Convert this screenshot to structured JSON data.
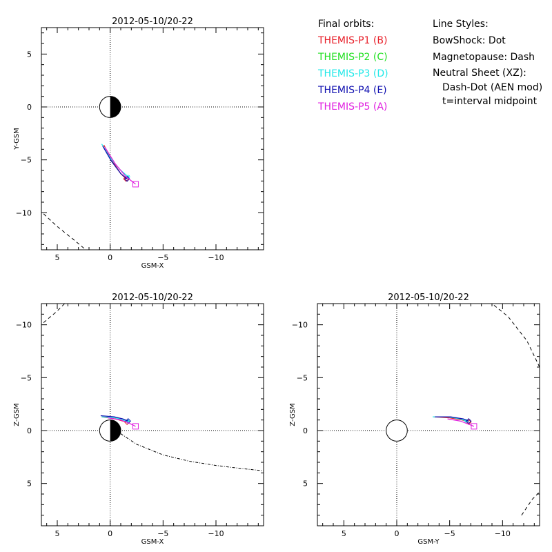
{
  "legend": {
    "orbits_title": "Final orbits:",
    "probes": [
      {
        "label": "THEMIS-P1 (B)",
        "color": "#e8202a"
      },
      {
        "label": "THEMIS-P2 (C)",
        "color": "#22e022"
      },
      {
        "label": "THEMIS-P3 (D)",
        "color": "#22e8e8"
      },
      {
        "label": "THEMIS-P4 (E)",
        "color": "#1010b0"
      },
      {
        "label": "THEMIS-P5 (A)",
        "color": "#e020e0"
      }
    ],
    "styles_title": "Line Styles:",
    "styles": [
      "BowShock: Dot",
      "Magnetopause: Dash",
      "Neutral Sheet (XZ):"
    ],
    "styles_sub": [
      "Dash-Dot (AEN mod)",
      "t=interval midpoint"
    ]
  },
  "chart_data": [
    {
      "type": "line",
      "panel": "XY",
      "title": "2012-05-10/20-22",
      "xlabel": "GSM-X",
      "ylabel": "Y-GSM",
      "xlim": [
        6.5,
        -14.5
      ],
      "ylim": [
        7.5,
        -13.5
      ],
      "x_ticks": [
        5,
        0,
        -5,
        -10
      ],
      "y_ticks": [
        5,
        0,
        -5,
        -10
      ],
      "earth_markers": true,
      "boundary_dashed": [
        [
          6.3,
          -10.1
        ],
        [
          5,
          -11.3
        ],
        [
          3.5,
          -12.5
        ],
        [
          2.3,
          -13.5
        ]
      ],
      "series": [
        {
          "name": "THEMIS-P1 (B)",
          "color": "#e8202a",
          "points": [
            [
              0.6,
              -3.6
            ],
            [
              -0.2,
              -5.1
            ],
            [
              -1.0,
              -6.3
            ],
            [
              -1.5,
              -6.8
            ]
          ],
          "end_marker": "diamond"
        },
        {
          "name": "THEMIS-P3 (D)",
          "color": "#22e8e8",
          "points": [
            [
              0.8,
              -3.5
            ],
            [
              0.0,
              -4.8
            ],
            [
              -0.9,
              -5.9
            ],
            [
              -1.7,
              -6.6
            ]
          ],
          "end_marker": "star"
        },
        {
          "name": "THEMIS-P4 (E)",
          "color": "#1010b0",
          "points": [
            [
              0.7,
              -3.7
            ],
            [
              -0.1,
              -5.1
            ],
            [
              -1.0,
              -6.3
            ],
            [
              -1.6,
              -6.8
            ]
          ],
          "end_marker": "diamond"
        },
        {
          "name": "THEMIS-P5 (A)",
          "color": "#e020e0",
          "points": [
            [
              0.5,
              -3.8
            ],
            [
              -0.5,
              -5.4
            ],
            [
              -1.5,
              -6.6
            ],
            [
              -2.4,
              -7.3
            ]
          ],
          "end_marker": "square"
        }
      ]
    },
    {
      "type": "line",
      "panel": "XZ",
      "title": "2012-05-10/20-22",
      "xlabel": "GSM-X",
      "ylabel": "Z-GSM",
      "xlim": [
        6.5,
        -14.5
      ],
      "ylim": [
        -12,
        9
      ],
      "x_ticks": [
        5,
        0,
        -5,
        -10
      ],
      "y_ticks": [
        5,
        0,
        -5,
        -10
      ],
      "earth_markers": true,
      "boundary_dashed": [
        [
          6.3,
          -10.2
        ],
        [
          5,
          -11.3
        ],
        [
          4.3,
          -12
        ]
      ],
      "neutral_sheet": [
        [
          -1.0,
          0.3
        ],
        [
          -2.5,
          1.3
        ],
        [
          -5,
          2.3
        ],
        [
          -7.5,
          2.9
        ],
        [
          -10,
          3.3
        ],
        [
          -12.5,
          3.6
        ],
        [
          -14.5,
          3.8
        ]
      ],
      "series": [
        {
          "name": "THEMIS-P1 (B)",
          "color": "#e8202a",
          "points": [
            [
              0.8,
              -1.3
            ],
            [
              -0.5,
              -1.1
            ],
            [
              -1.2,
              -0.9
            ],
            [
              -1.6,
              -0.8
            ]
          ],
          "end_marker": "diamond"
        },
        {
          "name": "THEMIS-P3 (D)",
          "color": "#22e8e8",
          "points": [
            [
              0.8,
              -1.3
            ],
            [
              -0.5,
              -1.2
            ],
            [
              -1.2,
              -1.0
            ],
            [
              -1.7,
              -0.9
            ]
          ],
          "end_marker": "star"
        },
        {
          "name": "THEMIS-P4 (E)",
          "color": "#1010b0",
          "points": [
            [
              0.9,
              -1.4
            ],
            [
              -0.4,
              -1.3
            ],
            [
              -1.2,
              -1.1
            ],
            [
              -1.7,
              -0.9
            ]
          ],
          "end_marker": "diamond"
        },
        {
          "name": "THEMIS-P5 (A)",
          "color": "#e020e0",
          "points": [
            [
              0.2,
              -1.2
            ],
            [
              -1.0,
              -1.0
            ],
            [
              -1.8,
              -0.7
            ],
            [
              -2.4,
              -0.4
            ]
          ],
          "end_marker": "square"
        }
      ]
    },
    {
      "type": "line",
      "panel": "YZ",
      "title": "2012-05-10/20-22",
      "xlabel": "GSM-Y",
      "ylabel": "Z-GSM",
      "xlim": [
        7.5,
        -13.5
      ],
      "ylim": [
        -12,
        9
      ],
      "x_ticks": [
        5,
        0,
        -5,
        -10
      ],
      "y_ticks": [
        5,
        0,
        -5,
        -10
      ],
      "earth_markers": false,
      "boundary_dashed_arcs": [
        [
          [
            -11.8,
            8.0
          ],
          [
            -12.8,
            6.5
          ],
          [
            -13.5,
            5.8
          ]
        ],
        [
          [
            -13.5,
            -6.0
          ],
          [
            -12.3,
            -8.5
          ],
          [
            -10.5,
            -10.8
          ],
          [
            -9.0,
            -12
          ]
        ]
      ],
      "series": [
        {
          "name": "THEMIS-P1 (B)",
          "color": "#e8202a",
          "points": [
            [
              -3.5,
              -1.3
            ],
            [
              -5.0,
              -1.2
            ],
            [
              -6.2,
              -1.0
            ],
            [
              -6.8,
              -0.8
            ]
          ],
          "end_marker": "diamond"
        },
        {
          "name": "THEMIS-P3 (D)",
          "color": "#22e8e8",
          "points": [
            [
              -3.4,
              -1.3
            ],
            [
              -4.8,
              -1.3
            ],
            [
              -6.0,
              -1.1
            ],
            [
              -6.6,
              -0.9
            ]
          ],
          "end_marker": "star"
        },
        {
          "name": "THEMIS-P4 (E)",
          "color": "#1010b0",
          "points": [
            [
              -3.6,
              -1.3
            ],
            [
              -5.1,
              -1.3
            ],
            [
              -6.3,
              -1.1
            ],
            [
              -6.8,
              -0.9
            ]
          ],
          "end_marker": "diamond"
        },
        {
          "name": "THEMIS-P5 (A)",
          "color": "#e020e0",
          "points": [
            [
              -4.8,
              -1.1
            ],
            [
              -6.0,
              -0.9
            ],
            [
              -6.8,
              -0.6
            ],
            [
              -7.3,
              -0.4
            ]
          ],
          "end_marker": "square"
        }
      ]
    }
  ]
}
